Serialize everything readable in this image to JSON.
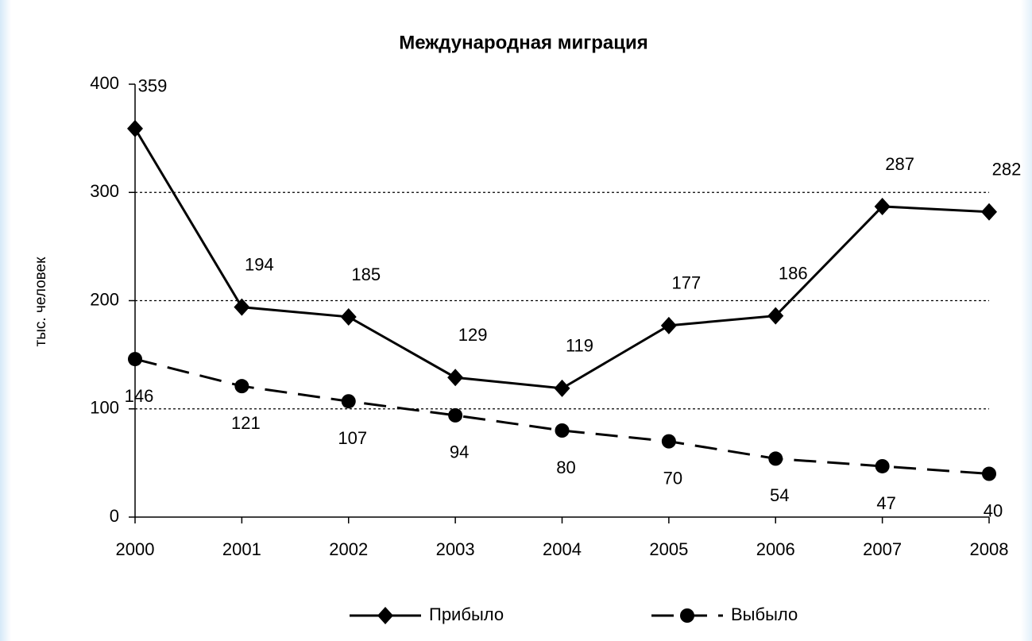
{
  "chart_data": {
    "type": "line",
    "title": "Международная миграция",
    "y_label": "тыс. человек",
    "categories": [
      "2000",
      "2001",
      "2002",
      "2003",
      "2004",
      "2005",
      "2006",
      "2007",
      "2008"
    ],
    "series": [
      {
        "name": "Прибыло",
        "color": "#000000",
        "marker": "diamond",
        "dash": false,
        "values": [
          359,
          194,
          185,
          129,
          119,
          177,
          186,
          287,
          282
        ]
      },
      {
        "name": "Выбыло",
        "color": "#000000",
        "marker": "circle",
        "dash": true,
        "values": [
          146,
          121,
          107,
          94,
          80,
          70,
          54,
          47,
          40
        ]
      }
    ],
    "ylim": [
      0,
      400
    ],
    "yticks": [
      0,
      100,
      200,
      300,
      400
    ],
    "grid": true,
    "legend": "bottom"
  }
}
